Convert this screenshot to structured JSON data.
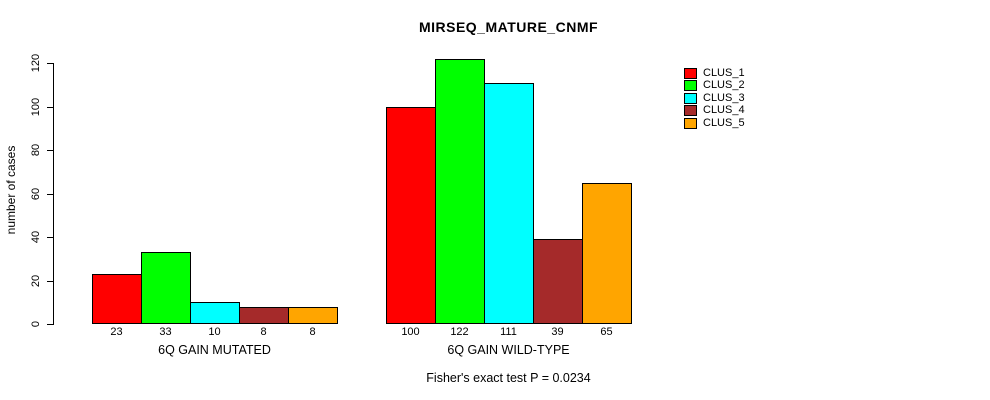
{
  "chart_data": {
    "type": "bar",
    "title": "MIRSEQ_MATURE_CNMF",
    "ylabel": "number of cases",
    "xlabel": "",
    "ylim": [
      0,
      120
    ],
    "yticks": [
      0,
      20,
      40,
      60,
      80,
      100,
      120
    ],
    "grid": false,
    "legend_position": "right",
    "groups": [
      {
        "label": "6Q GAIN MUTATED",
        "values": [
          23,
          33,
          10,
          8,
          8
        ]
      },
      {
        "label": "6Q GAIN WILD-TYPE",
        "values": [
          100,
          122,
          111,
          39,
          65
        ]
      }
    ],
    "series_colors": [
      "#FF0000",
      "#00FF00",
      "#00FFFF",
      "#A52A2A",
      "#FFA500"
    ],
    "legend": [
      {
        "label": "CLUS_1",
        "color": "#FF0000"
      },
      {
        "label": "CLUS_2",
        "color": "#00FF00"
      },
      {
        "label": "CLUS_3",
        "color": "#00FFFF"
      },
      {
        "label": "CLUS_4",
        "color": "#A52A2A"
      },
      {
        "label": "CLUS_5",
        "color": "#FFA500"
      }
    ],
    "annotation": "Fisher's exact test P = 0.0234"
  }
}
